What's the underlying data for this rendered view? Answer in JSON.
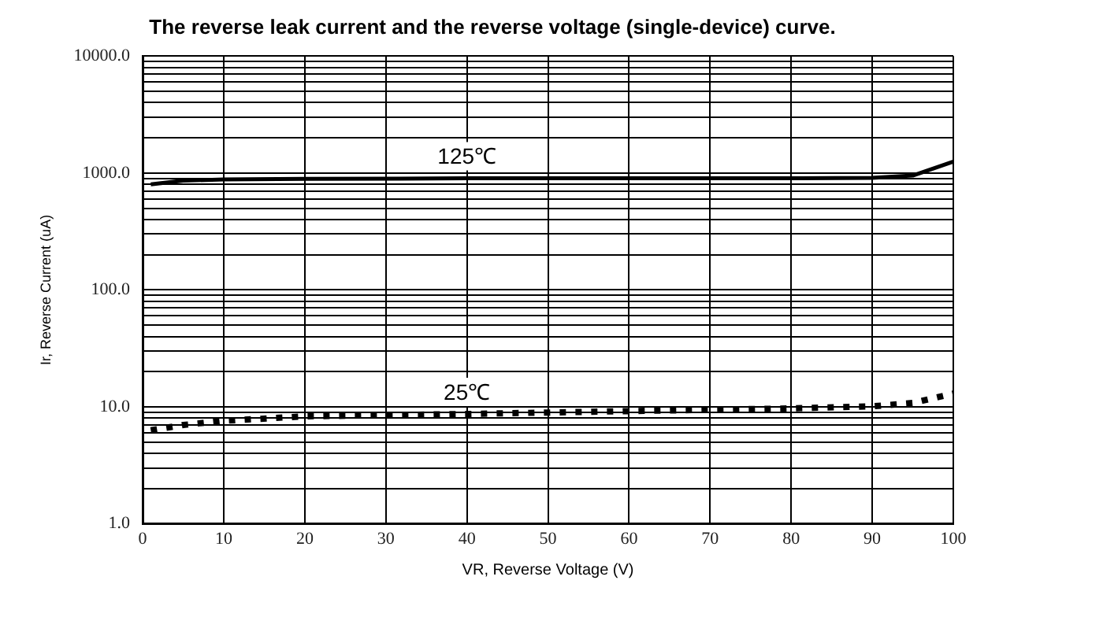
{
  "chart_data": {
    "type": "line",
    "title": "The reverse leak current and the reverse voltage (single-device) curve.",
    "xlabel": "VR, Reverse Voltage (V)",
    "ylabel": "Ir, Reverse Current (uA)",
    "log": "y",
    "grid": true,
    "legend": false,
    "marker": "none",
    "xlim": [
      0,
      100
    ],
    "xticks": [
      0,
      10,
      20,
      30,
      40,
      50,
      60,
      70,
      80,
      90,
      100
    ],
    "ylim": [
      1,
      10000
    ],
    "yticks": [
      {
        "value": 1,
        "label": "1.0"
      },
      {
        "value": 2,
        "label": null
      },
      {
        "value": 3,
        "label": null
      },
      {
        "value": 4,
        "label": null
      },
      {
        "value": 5,
        "label": null
      },
      {
        "value": 6,
        "label": null
      },
      {
        "value": 7,
        "label": null
      },
      {
        "value": 8,
        "label": null
      },
      {
        "value": 9,
        "label": null
      },
      {
        "value": 10,
        "label": "10.0"
      },
      {
        "value": 20,
        "label": null
      },
      {
        "value": 30,
        "label": null
      },
      {
        "value": 40,
        "label": null
      },
      {
        "value": 50,
        "label": null
      },
      {
        "value": 60,
        "label": null
      },
      {
        "value": 70,
        "label": null
      },
      {
        "value": 80,
        "label": null
      },
      {
        "value": 90,
        "label": null
      },
      {
        "value": 100,
        "label": "100.0"
      },
      {
        "value": 200,
        "label": null
      },
      {
        "value": 300,
        "label": null
      },
      {
        "value": 400,
        "label": null
      },
      {
        "value": 500,
        "label": null
      },
      {
        "value": 600,
        "label": null
      },
      {
        "value": 700,
        "label": null
      },
      {
        "value": 800,
        "label": null
      },
      {
        "value": 900,
        "label": null
      },
      {
        "value": 1000,
        "label": "1000.0"
      },
      {
        "value": 2000,
        "label": null
      },
      {
        "value": 3000,
        "label": null
      },
      {
        "value": 4000,
        "label": null
      },
      {
        "value": 5000,
        "label": null
      },
      {
        "value": 6000,
        "label": null
      },
      {
        "value": 7000,
        "label": null
      },
      {
        "value": 8000,
        "label": null
      },
      {
        "value": 9000,
        "label": null
      },
      {
        "value": 10000,
        "label": "10000.0"
      }
    ],
    "x": [
      1,
      5,
      10,
      20,
      40,
      60,
      80,
      90,
      95,
      100
    ],
    "series": [
      {
        "name": "125℃",
        "color": "#000000",
        "line_style": "solid",
        "values": [
          800,
          860,
          880,
          890,
          900,
          900,
          900,
          910,
          950,
          1250
        ]
      },
      {
        "name": "25℃",
        "color": "#000000",
        "line_style": "dotted",
        "values": [
          6.3,
          7.0,
          7.6,
          8.3,
          8.7,
          9.2,
          9.7,
          10.1,
          10.8,
          13
        ]
      }
    ]
  }
}
